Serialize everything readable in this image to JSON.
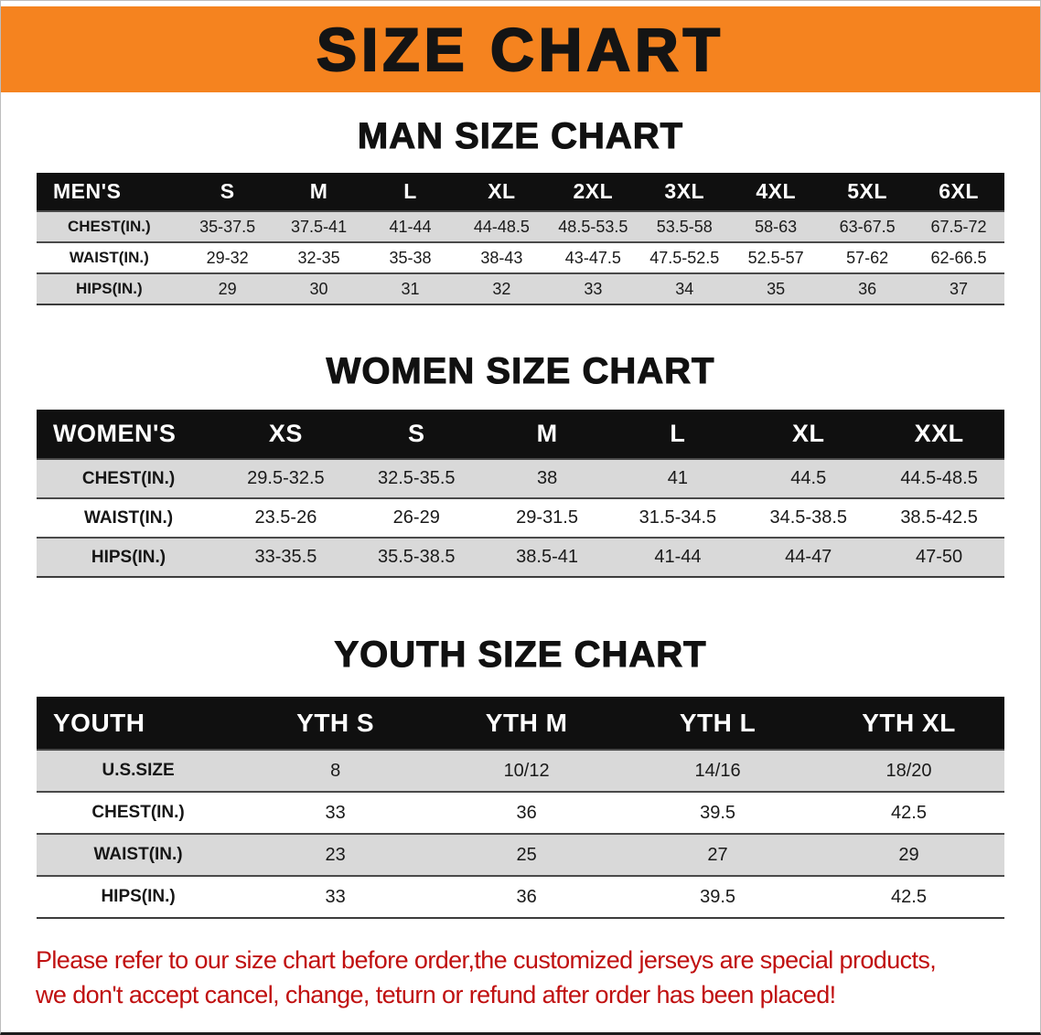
{
  "colors": {
    "banner_bg": "#f5831f",
    "table_header_bg": "#101010",
    "row_stripe": "#d9d9d9",
    "disclaimer_red": "#c01010"
  },
  "banner": {
    "title": "SIZE CHART"
  },
  "sections": [
    {
      "heading": "MAN SIZE CHART",
      "table": {
        "header": [
          "MEN'S",
          "S",
          "M",
          "L",
          "XL",
          "2XL",
          "3XL",
          "4XL",
          "5XL",
          "6XL"
        ],
        "rows": [
          [
            "CHEST(IN.)",
            "35-37.5",
            "37.5-41",
            "41-44",
            "44-48.5",
            "48.5-53.5",
            "53.5-58",
            "58-63",
            "63-67.5",
            "67.5-72"
          ],
          [
            "WAIST(IN.)",
            "29-32",
            "32-35",
            "35-38",
            "38-43",
            "43-47.5",
            "47.5-52.5",
            "52.5-57",
            "57-62",
            "62-66.5"
          ],
          [
            "HIPS(IN.)",
            "29",
            "30",
            "31",
            "32",
            "33",
            "34",
            "35",
            "36",
            "37"
          ]
        ]
      }
    },
    {
      "heading": "WOMEN SIZE CHART",
      "table": {
        "header": [
          "WOMEN'S",
          "XS",
          "S",
          "M",
          "L",
          "XL",
          "XXL"
        ],
        "rows": [
          [
            "CHEST(IN.)",
            "29.5-32.5",
            "32.5-35.5",
            "38",
            "41",
            "44.5",
            "44.5-48.5"
          ],
          [
            "WAIST(IN.)",
            "23.5-26",
            "26-29",
            "29-31.5",
            "31.5-34.5",
            "34.5-38.5",
            "38.5-42.5"
          ],
          [
            "HIPS(IN.)",
            "33-35.5",
            "35.5-38.5",
            "38.5-41",
            "41-44",
            "44-47",
            "47-50"
          ]
        ]
      }
    },
    {
      "heading": "YOUTH SIZE CHART",
      "table": {
        "header": [
          "YOUTH",
          "YTH S",
          "YTH M",
          "YTH L",
          "YTH XL"
        ],
        "rows": [
          [
            "U.S.SIZE",
            "8",
            "10/12",
            "14/16",
            "18/20"
          ],
          [
            "CHEST(IN.)",
            "33",
            "36",
            "39.5",
            "42.5"
          ],
          [
            "WAIST(IN.)",
            "23",
            "25",
            "27",
            "29"
          ],
          [
            "HIPS(IN.)",
            "33",
            "36",
            "39.5",
            "42.5"
          ]
        ]
      }
    }
  ],
  "disclaimer": {
    "line1": "Please refer to our size chart before order,the customized jerseys are special products,",
    "line2": "we don't accept cancel, change, teturn or refund after order has been placed!"
  }
}
